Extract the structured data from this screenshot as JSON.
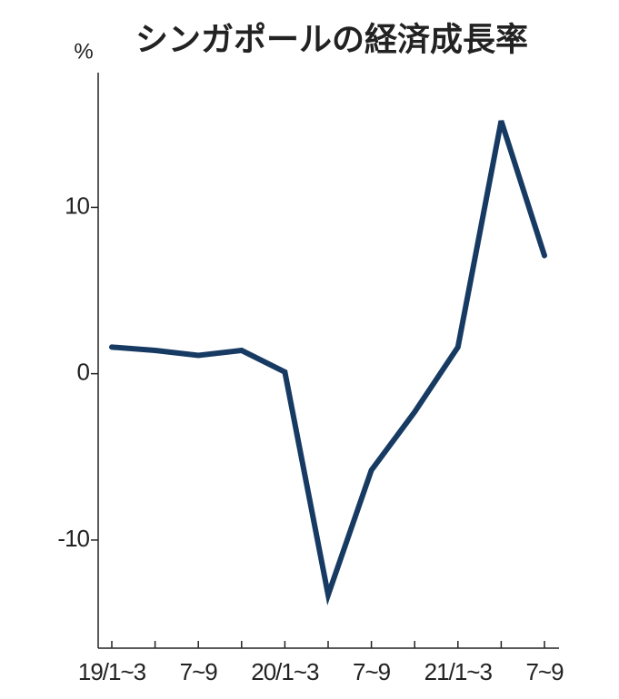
{
  "chart_data": {
    "type": "line",
    "title": "シンガポールの経済成長率",
    "y_unit": "%",
    "categories": [
      "19/1~3",
      null,
      "7~9",
      null,
      "20/1~3",
      null,
      "7~9",
      null,
      "21/1~3",
      null,
      "7~9"
    ],
    "series": [
      {
        "name": "経済成長率",
        "color": "#173a63",
        "values": [
          1.6,
          1.4,
          1.1,
          1.4,
          0.1,
          -13.3,
          -5.8,
          -2.3,
          1.6,
          15.2,
          7.1
        ]
      }
    ],
    "ylim": [
      -16.5,
      18.1
    ],
    "yticks": [
      -10,
      0,
      10
    ]
  }
}
